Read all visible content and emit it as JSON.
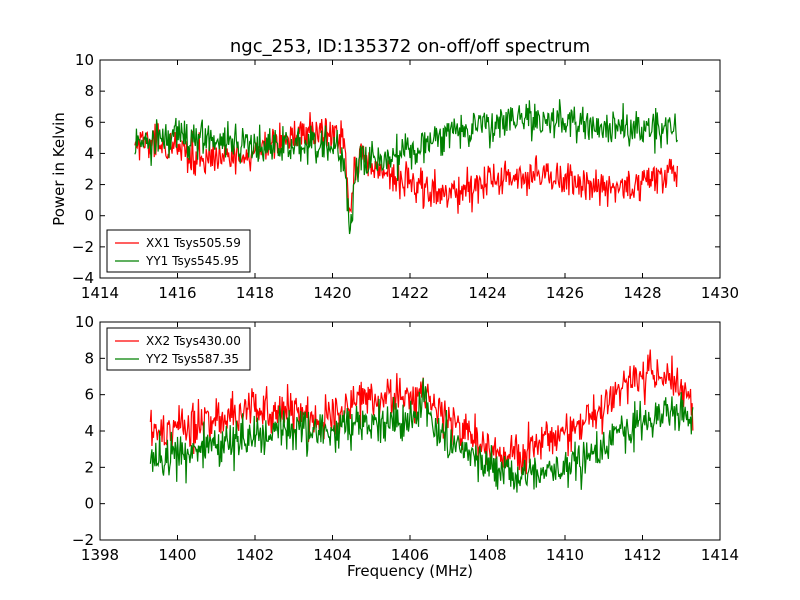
{
  "chart_data": [
    {
      "type": "line",
      "title": "ngc_253, ID:135372 on-off/off spectrum",
      "xlabel": "",
      "ylabel": "Power in Kelvin",
      "xlim": [
        1414,
        1430
      ],
      "ylim": [
        -4,
        10
      ],
      "xticks": [
        "1414",
        "1416",
        "1418",
        "1420",
        "1422",
        "1424",
        "1426",
        "1428",
        "1430"
      ],
      "yticks": [
        "−4",
        "−2",
        "0",
        "2",
        "4",
        "6",
        "8",
        "10"
      ],
      "legend_position": "lower-left",
      "x_range": [
        1414.9,
        1428.9
      ],
      "series": [
        {
          "name": "XX1 Tsys505.59",
          "color": "#ff0000",
          "x": [
            1414.9,
            1415.5,
            1416.0,
            1416.5,
            1417.0,
            1417.5,
            1418.0,
            1418.5,
            1419.0,
            1419.5,
            1420.0,
            1420.3,
            1420.45,
            1420.55,
            1420.7,
            1421.0,
            1421.3,
            1421.6,
            1422.0,
            1422.5,
            1423.0,
            1423.5,
            1424.0,
            1424.5,
            1425.0,
            1425.5,
            1426.0,
            1426.5,
            1427.0,
            1427.5,
            1428.0,
            1428.5,
            1428.9
          ],
          "values": [
            5.0,
            4.5,
            4.2,
            4.0,
            3.9,
            3.8,
            4.0,
            4.8,
            5.3,
            5.4,
            5.3,
            4.8,
            0.0,
            2.8,
            3.6,
            3.3,
            2.9,
            2.5,
            2.0,
            1.5,
            1.3,
            1.6,
            2.2,
            2.5,
            2.4,
            2.3,
            2.2,
            2.1,
            1.9,
            1.8,
            2.0,
            2.6,
            3.0
          ]
        },
        {
          "name": "YY1 Tsys545.95",
          "color": "#008000",
          "x": [
            1414.9,
            1415.5,
            1416.0,
            1416.5,
            1417.0,
            1417.5,
            1418.0,
            1418.5,
            1419.0,
            1419.5,
            1420.0,
            1420.3,
            1420.45,
            1420.55,
            1420.7,
            1421.0,
            1421.3,
            1421.6,
            1422.0,
            1422.5,
            1423.0,
            1423.5,
            1424.0,
            1424.5,
            1425.0,
            1425.5,
            1426.0,
            1426.5,
            1427.0,
            1427.5,
            1428.0,
            1428.5,
            1428.9
          ],
          "values": [
            4.6,
            4.9,
            5.0,
            5.1,
            4.8,
            4.6,
            4.4,
            4.5,
            4.6,
            4.5,
            4.3,
            3.8,
            -1.5,
            2.2,
            3.5,
            3.6,
            3.7,
            3.7,
            4.0,
            4.6,
            5.2,
            5.6,
            6.0,
            6.2,
            6.3,
            6.1,
            6.0,
            5.8,
            5.7,
            5.6,
            5.6,
            5.7,
            5.5
          ]
        }
      ]
    },
    {
      "type": "line",
      "title": "",
      "xlabel": "Frequency (MHz)",
      "ylabel": "",
      "xlim": [
        1398,
        1414
      ],
      "ylim": [
        -2,
        10
      ],
      "xticks": [
        "1398",
        "1400",
        "1402",
        "1404",
        "1406",
        "1408",
        "1410",
        "1412",
        "1414"
      ],
      "yticks": [
        "−2",
        "0",
        "2",
        "4",
        "6",
        "8",
        "10"
      ],
      "legend_position": "upper-left",
      "x_range": [
        1399.3,
        1413.3
      ],
      "series": [
        {
          "name": "XX2 Tsys430.00",
          "color": "#ff0000",
          "x": [
            1399.3,
            1400.0,
            1400.5,
            1401.0,
            1401.5,
            1402.0,
            1402.5,
            1403.0,
            1403.5,
            1404.0,
            1404.5,
            1405.0,
            1405.5,
            1406.0,
            1406.3,
            1406.6,
            1407.0,
            1407.5,
            1408.0,
            1408.5,
            1409.0,
            1409.5,
            1410.0,
            1410.5,
            1411.0,
            1411.5,
            1412.0,
            1412.5,
            1413.0,
            1413.3
          ],
          "values": [
            4.0,
            4.2,
            4.3,
            4.6,
            4.9,
            5.1,
            5.0,
            4.9,
            4.7,
            4.8,
            5.3,
            5.7,
            5.9,
            5.9,
            6.2,
            5.4,
            4.6,
            3.7,
            3.0,
            2.7,
            2.9,
            3.3,
            3.9,
            4.6,
            5.3,
            6.5,
            7.0,
            7.0,
            6.4,
            5.6
          ]
        },
        {
          "name": "YY2 Tsys587.35",
          "color": "#008000",
          "x": [
            1399.3,
            1400.0,
            1400.5,
            1401.0,
            1401.5,
            1402.0,
            1402.5,
            1403.0,
            1403.5,
            1404.0,
            1404.5,
            1405.0,
            1405.5,
            1406.0,
            1406.3,
            1406.6,
            1407.0,
            1407.5,
            1408.0,
            1408.5,
            1409.0,
            1409.5,
            1410.0,
            1410.5,
            1411.0,
            1411.5,
            1412.0,
            1412.5,
            1413.0,
            1413.3
          ],
          "values": [
            2.6,
            2.6,
            3.0,
            3.4,
            3.6,
            3.7,
            3.9,
            4.1,
            4.0,
            4.0,
            4.3,
            4.4,
            4.4,
            4.4,
            5.6,
            4.3,
            3.4,
            2.8,
            2.0,
            1.6,
            1.5,
            1.7,
            2.0,
            2.5,
            3.0,
            3.8,
            4.5,
            5.1,
            5.0,
            4.8
          ]
        }
      ]
    }
  ]
}
